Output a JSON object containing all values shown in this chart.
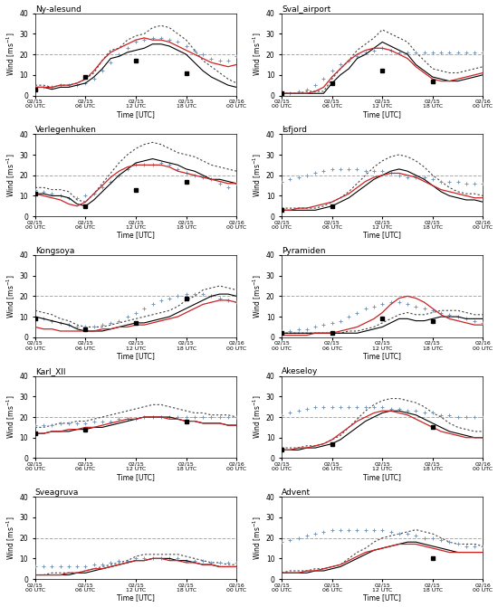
{
  "stations": [
    "Ny-alesund",
    "Sval_airport",
    "Verlegenhuken",
    "Isfjord",
    "Kongsoya",
    "Pyramiden",
    "Karl_XII",
    "Akeseloy",
    "Sveagruva",
    "Advent"
  ],
  "ylim": [
    0,
    40
  ],
  "yticks": [
    0,
    10,
    20,
    30,
    40
  ],
  "dashed_line_y": 20,
  "xtick_positions": [
    0,
    6,
    12,
    18,
    24
  ],
  "xtick_labels": [
    "02/15\n00 UTC",
    "02/15\n06 UTC",
    "02/15\n12 UTC",
    "02/15\n18 UTC",
    "02/16\n00 UTC"
  ],
  "background_color": "#ffffff",
  "subplot_data": {
    "Ny-alesund": {
      "obs_solid": [
        4,
        4,
        3,
        4,
        4,
        5,
        6,
        9,
        13,
        18,
        19,
        21,
        22,
        23,
        25,
        25,
        24,
        22,
        20,
        16,
        12,
        9,
        7,
        5,
        4
      ],
      "obs_dotted": [
        5,
        5,
        4,
        5,
        5,
        6,
        8,
        11,
        17,
        22,
        23,
        27,
        29,
        30,
        33,
        34,
        33,
        30,
        27,
        22,
        17,
        14,
        11,
        8,
        6
      ],
      "era_t": [
        0,
        6,
        12,
        18
      ],
      "era_v": [
        3,
        9,
        17,
        11
      ],
      "exp1_t": [
        0,
        1,
        2,
        3,
        4,
        5,
        6,
        7,
        8,
        9,
        10,
        11,
        12,
        13,
        14,
        15,
        16,
        17,
        18,
        19,
        20,
        21,
        22,
        23,
        24
      ],
      "exp1_v": [
        4,
        4,
        4,
        5,
        5,
        5,
        6,
        8,
        12,
        16,
        20,
        23,
        26,
        27,
        28,
        28,
        27,
        26,
        24,
        22,
        20,
        18,
        17,
        17,
        19
      ],
      "exp2": [
        4,
        4,
        4,
        5,
        5,
        6,
        8,
        12,
        17,
        21,
        23,
        25,
        27,
        28,
        27,
        27,
        26,
        24,
        22,
        20,
        18,
        16,
        15,
        14,
        15
      ]
    },
    "Sval_airport": {
      "obs_solid": [
        1,
        1,
        1,
        1,
        1,
        1,
        6,
        10,
        13,
        18,
        20,
        23,
        26,
        24,
        22,
        20,
        15,
        12,
        9,
        8,
        7,
        7,
        8,
        9,
        10
      ],
      "obs_dotted": [
        1,
        1,
        1,
        2,
        2,
        2,
        8,
        13,
        17,
        22,
        25,
        28,
        32,
        30,
        28,
        26,
        21,
        17,
        13,
        12,
        11,
        11,
        12,
        13,
        14
      ],
      "era_t": [
        0,
        6,
        12,
        18
      ],
      "era_v": [
        1,
        6,
        12,
        7
      ],
      "exp1_t": [
        0,
        1,
        2,
        3,
        4,
        5,
        6,
        7,
        8,
        9,
        10,
        11,
        12,
        13,
        14,
        15,
        16,
        17,
        18,
        19,
        20,
        21,
        22,
        23,
        24
      ],
      "exp1_v": [
        1,
        1,
        2,
        3,
        5,
        8,
        12,
        15,
        17,
        19,
        21,
        22,
        23,
        22,
        21,
        21,
        21,
        21,
        21,
        21,
        21,
        21,
        21,
        21,
        21
      ],
      "exp2": [
        1,
        1,
        1,
        1,
        2,
        4,
        9,
        13,
        17,
        20,
        22,
        23,
        23,
        22,
        20,
        18,
        14,
        11,
        8,
        7,
        7,
        8,
        9,
        10,
        11
      ]
    },
    "Verlegenhuken": {
      "obs_solid": [
        11,
        11,
        10,
        10,
        9,
        6,
        5,
        8,
        12,
        16,
        20,
        23,
        26,
        27,
        28,
        27,
        26,
        25,
        23,
        22,
        20,
        18,
        18,
        17,
        16
      ],
      "obs_dotted": [
        14,
        14,
        13,
        13,
        12,
        8,
        7,
        11,
        16,
        21,
        26,
        30,
        33,
        35,
        36,
        35,
        33,
        31,
        30,
        29,
        27,
        25,
        24,
        23,
        22
      ],
      "era_t": [
        0,
        6,
        12,
        18
      ],
      "era_v": [
        11,
        5,
        13,
        17
      ],
      "exp1_t": [
        0,
        1,
        2,
        3,
        4,
        5,
        6,
        7,
        8,
        9,
        10,
        11,
        12,
        13,
        14,
        15,
        16,
        17,
        18,
        19,
        20,
        21,
        22,
        23,
        24
      ],
      "exp1_v": [
        13,
        12,
        11,
        10,
        9,
        9,
        10,
        11,
        14,
        17,
        20,
        23,
        25,
        25,
        25,
        26,
        25,
        23,
        21,
        20,
        19,
        18,
        16,
        14,
        16
      ],
      "exp2": [
        11,
        10,
        9,
        8,
        6,
        5,
        7,
        11,
        15,
        19,
        22,
        24,
        25,
        25,
        25,
        25,
        24,
        22,
        21,
        20,
        19,
        18,
        17,
        16,
        16
      ]
    },
    "Isfjord": {
      "obs_solid": [
        3,
        3,
        3,
        3,
        3,
        4,
        5,
        7,
        9,
        12,
        15,
        18,
        20,
        22,
        23,
        22,
        20,
        18,
        15,
        12,
        10,
        9,
        8,
        8,
        7
      ],
      "obs_dotted": [
        4,
        4,
        4,
        4,
        4,
        5,
        7,
        9,
        12,
        16,
        20,
        24,
        27,
        29,
        30,
        29,
        27,
        24,
        20,
        17,
        14,
        12,
        11,
        11,
        10
      ],
      "era_t": [
        0,
        6
      ],
      "era_v": [
        3,
        5
      ],
      "exp1_t": [
        0,
        1,
        2,
        3,
        4,
        5,
        6,
        7,
        8,
        9,
        10,
        11,
        12,
        13,
        14,
        15,
        16,
        17,
        18,
        19,
        20,
        21,
        22,
        23,
        24
      ],
      "exp1_v": [
        17,
        18,
        19,
        20,
        21,
        22,
        23,
        23,
        23,
        23,
        22,
        22,
        22,
        21,
        20,
        19,
        19,
        19,
        18,
        17,
        17,
        17,
        16,
        16,
        16
      ],
      "exp2": [
        3,
        3,
        4,
        4,
        5,
        6,
        7,
        9,
        11,
        14,
        17,
        19,
        20,
        21,
        21,
        20,
        19,
        17,
        15,
        13,
        12,
        11,
        10,
        9,
        9
      ]
    },
    "Kongsoya": {
      "obs_solid": [
        10,
        9,
        8,
        7,
        6,
        4,
        3,
        3,
        3,
        4,
        5,
        6,
        7,
        7,
        8,
        9,
        10,
        12,
        14,
        16,
        18,
        20,
        21,
        21,
        20
      ],
      "obs_dotted": [
        13,
        12,
        11,
        9,
        8,
        6,
        5,
        5,
        5,
        6,
        7,
        8,
        9,
        10,
        11,
        12,
        13,
        15,
        18,
        20,
        23,
        24,
        25,
        24,
        23
      ],
      "era_t": [
        0,
        6,
        12,
        18
      ],
      "era_v": [
        9,
        4,
        7,
        19
      ],
      "exp1_t": [
        0,
        1,
        2,
        3,
        4,
        5,
        6,
        7,
        8,
        9,
        10,
        11,
        12,
        13,
        14,
        15,
        16,
        17,
        18,
        19,
        20,
        21,
        22,
        23,
        24
      ],
      "exp1_v": [
        9,
        9,
        8,
        7,
        6,
        5,
        5,
        5,
        6,
        7,
        8,
        10,
        12,
        14,
        16,
        18,
        19,
        20,
        21,
        21,
        21,
        20,
        19,
        18,
        17
      ],
      "exp2": [
        5,
        4,
        4,
        3,
        3,
        3,
        3,
        3,
        4,
        4,
        5,
        5,
        6,
        6,
        7,
        8,
        9,
        10,
        12,
        14,
        16,
        17,
        18,
        18,
        17
      ]
    },
    "Pyramiden": {
      "obs_solid": [
        2,
        2,
        2,
        2,
        2,
        2,
        2,
        2,
        2,
        2,
        3,
        4,
        5,
        7,
        9,
        9,
        8,
        8,
        9,
        10,
        10,
        10,
        9,
        9,
        9
      ],
      "obs_dotted": [
        2,
        2,
        2,
        2,
        2,
        2,
        2,
        2,
        3,
        3,
        4,
        5,
        7,
        9,
        11,
        12,
        11,
        11,
        12,
        13,
        13,
        13,
        12,
        11,
        11
      ],
      "era_t": [
        0,
        6,
        12,
        18
      ],
      "era_v": [
        2,
        2,
        9,
        8
      ],
      "exp1_t": [
        0,
        1,
        2,
        3,
        4,
        5,
        6,
        7,
        8,
        9,
        10,
        11,
        12,
        13,
        14,
        15,
        16,
        17,
        18,
        19,
        20,
        21,
        22,
        23,
        24
      ],
      "exp1_v": [
        3,
        3,
        4,
        4,
        5,
        6,
        7,
        8,
        10,
        12,
        14,
        15,
        16,
        17,
        17,
        16,
        15,
        14,
        13,
        12,
        11,
        10,
        9,
        8,
        7
      ],
      "exp2": [
        1,
        1,
        1,
        1,
        2,
        2,
        2,
        3,
        4,
        5,
        7,
        9,
        12,
        16,
        19,
        20,
        19,
        17,
        14,
        11,
        9,
        8,
        7,
        6,
        6
      ]
    },
    "Karl_XII": {
      "obs_solid": [
        12,
        12,
        13,
        13,
        13,
        14,
        14,
        15,
        15,
        16,
        17,
        18,
        19,
        20,
        20,
        20,
        20,
        19,
        18,
        18,
        17,
        17,
        17,
        16,
        16
      ],
      "obs_dotted": [
        15,
        15,
        16,
        17,
        17,
        18,
        18,
        19,
        20,
        21,
        22,
        23,
        24,
        25,
        26,
        26,
        25,
        24,
        23,
        22,
        22,
        21,
        21,
        21,
        20
      ],
      "era_t": [
        0,
        6,
        18
      ],
      "era_v": [
        12,
        14,
        18
      ],
      "exp1_t": [
        0,
        1,
        2,
        3,
        4,
        5,
        6,
        7,
        8,
        9,
        10,
        11,
        12,
        13,
        14,
        15,
        16,
        17,
        18,
        19,
        20,
        21,
        22,
        23,
        24
      ],
      "exp1_v": [
        16,
        16,
        16,
        17,
        17,
        17,
        17,
        18,
        18,
        18,
        19,
        19,
        19,
        20,
        20,
        20,
        20,
        20,
        20,
        20,
        20,
        20,
        20,
        20,
        20
      ],
      "exp2": [
        12,
        12,
        13,
        13,
        14,
        14,
        15,
        15,
        16,
        17,
        18,
        19,
        19,
        20,
        20,
        20,
        19,
        19,
        18,
        18,
        17,
        17,
        17,
        16,
        16
      ]
    },
    "Akeseloy": {
      "obs_solid": [
        4,
        4,
        4,
        5,
        5,
        6,
        7,
        9,
        12,
        15,
        18,
        20,
        22,
        23,
        23,
        22,
        21,
        19,
        17,
        15,
        13,
        12,
        11,
        10,
        10
      ],
      "obs_dotted": [
        5,
        5,
        5,
        6,
        6,
        7,
        9,
        11,
        15,
        19,
        23,
        26,
        28,
        29,
        29,
        28,
        27,
        25,
        22,
        20,
        17,
        15,
        14,
        13,
        13
      ],
      "era_t": [
        0,
        6,
        18
      ],
      "era_v": [
        4,
        7,
        15
      ],
      "exp1_t": [
        0,
        1,
        2,
        3,
        4,
        5,
        6,
        7,
        8,
        9,
        10,
        11,
        12,
        13,
        14,
        15,
        16,
        17,
        18,
        19,
        20,
        21,
        22,
        23,
        24
      ],
      "exp1_v": [
        21,
        22,
        23,
        24,
        25,
        25,
        25,
        25,
        25,
        25,
        25,
        25,
        25,
        24,
        24,
        23,
        23,
        22,
        22,
        21,
        21,
        20,
        20,
        20,
        20
      ],
      "exp2": [
        4,
        4,
        5,
        5,
        6,
        7,
        9,
        12,
        15,
        18,
        20,
        22,
        23,
        23,
        22,
        21,
        19,
        17,
        15,
        13,
        12,
        11,
        10,
        10,
        10
      ]
    },
    "Sveagruva": {
      "obs_solid": [
        2,
        2,
        2,
        2,
        2,
        3,
        3,
        4,
        5,
        6,
        7,
        8,
        9,
        9,
        10,
        10,
        10,
        9,
        9,
        8,
        7,
        7,
        6,
        6,
        6
      ],
      "obs_dotted": [
        2,
        2,
        3,
        3,
        3,
        3,
        4,
        5,
        6,
        7,
        8,
        9,
        11,
        12,
        12,
        12,
        12,
        12,
        11,
        10,
        9,
        8,
        8,
        7,
        7
      ],
      "era_t": [],
      "era_v": [],
      "exp1_t": [
        0,
        1,
        2,
        3,
        4,
        5,
        6,
        7,
        8,
        9,
        10,
        11,
        12,
        13,
        14,
        15,
        16,
        17,
        18,
        19,
        20,
        21,
        22,
        23,
        24
      ],
      "exp1_v": [
        6,
        6,
        6,
        6,
        6,
        6,
        6,
        7,
        7,
        8,
        9,
        9,
        10,
        10,
        10,
        10,
        10,
        10,
        9,
        9,
        9,
        8,
        8,
        8,
        8
      ],
      "exp2": [
        2,
        2,
        2,
        2,
        3,
        3,
        4,
        5,
        5,
        6,
        7,
        8,
        9,
        9,
        10,
        10,
        9,
        9,
        8,
        8,
        7,
        7,
        6,
        6,
        6
      ]
    },
    "Advent": {
      "obs_solid": [
        3,
        3,
        3,
        3,
        4,
        4,
        5,
        6,
        8,
        10,
        12,
        14,
        15,
        16,
        17,
        18,
        18,
        17,
        16,
        15,
        14,
        13,
        13,
        13,
        13
      ],
      "obs_dotted": [
        3,
        4,
        4,
        4,
        5,
        5,
        6,
        7,
        10,
        13,
        15,
        18,
        20,
        21,
        22,
        23,
        24,
        23,
        22,
        20,
        18,
        17,
        17,
        17,
        16
      ],
      "era_t": [
        18
      ],
      "era_v": [
        10
      ],
      "exp1_t": [
        0,
        1,
        2,
        3,
        4,
        5,
        6,
        7,
        8,
        9,
        10,
        11,
        12,
        13,
        14,
        15,
        16,
        17,
        18,
        19,
        20,
        21,
        22,
        23,
        24
      ],
      "exp1_v": [
        18,
        19,
        20,
        21,
        22,
        23,
        24,
        24,
        24,
        24,
        24,
        24,
        24,
        23,
        22,
        22,
        21,
        20,
        20,
        19,
        18,
        17,
        16,
        16,
        16
      ],
      "exp2": [
        3,
        3,
        3,
        4,
        4,
        5,
        6,
        7,
        9,
        11,
        13,
        14,
        15,
        16,
        17,
        17,
        17,
        16,
        15,
        14,
        13,
        13,
        13,
        13,
        13
      ]
    }
  }
}
